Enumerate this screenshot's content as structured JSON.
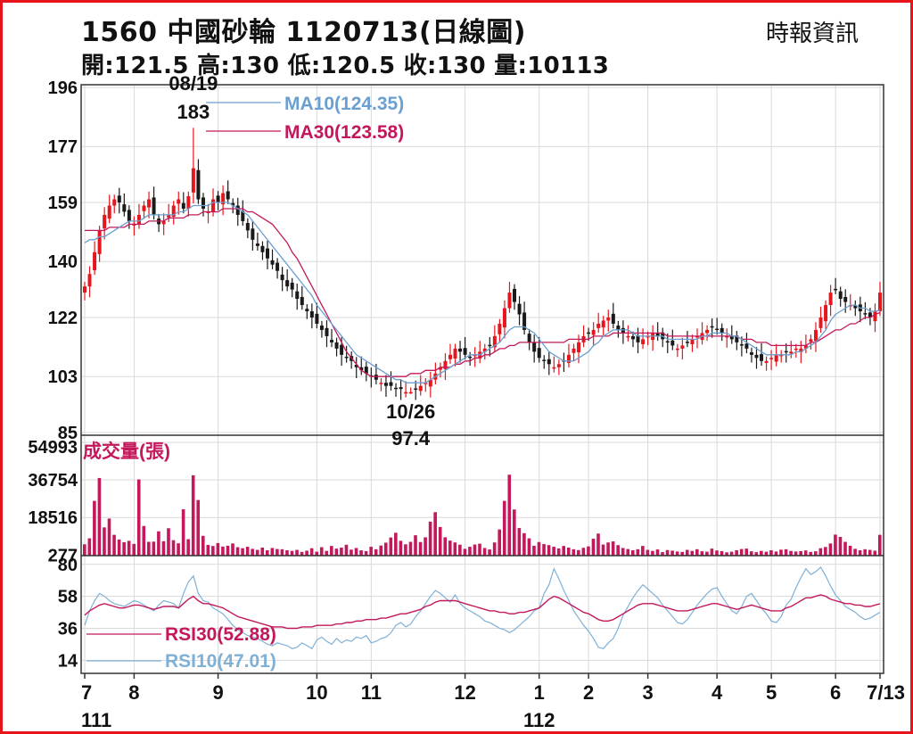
{
  "header": {
    "title": "1560  中國砂輪 1120713(日線圖)",
    "source": "時報資訊",
    "ohlc": "開:121.5 高:130 低:120.5 收:130 量:10113"
  },
  "colors": {
    "candle_up": "#e5161e",
    "candle_down": "#1a1a1a",
    "ma10": "#6a9fcf",
    "ma30": "#c3185b",
    "volume": "#c3185b",
    "rsi10": "#7fb0d6",
    "rsi30": "#c3185b",
    "grid": "#d9d9d9",
    "frame": "#e8141b"
  },
  "chart_data": [
    {
      "type": "candlestick",
      "panel": "price",
      "ylim": [
        85,
        196
      ],
      "yticks": [
        "196",
        "177",
        "159",
        "140",
        "122",
        "103",
        "85"
      ],
      "legend": [
        {
          "key": "ma10",
          "label": "MA10(124.35)"
        },
        {
          "key": "ma30",
          "label": "MA30(123.58)"
        }
      ],
      "annotations": [
        {
          "date": "08/19",
          "value": "183",
          "x_index": 22,
          "y": 183,
          "position": "above"
        },
        {
          "date": "10/26",
          "value": "97.4",
          "x_index": 66,
          "y": 97.4,
          "position": "below"
        }
      ],
      "close": [
        132,
        136,
        143,
        150,
        155,
        158,
        160,
        159,
        156,
        153,
        152,
        155,
        158,
        160,
        155,
        152,
        153,
        155,
        158,
        160,
        157,
        161,
        170,
        160,
        157,
        156,
        160,
        159,
        162,
        160,
        158,
        155,
        153,
        150,
        147,
        145,
        143,
        141,
        139,
        137,
        134,
        132,
        131,
        128,
        126,
        124,
        122,
        120,
        118,
        116,
        114,
        112,
        110,
        109,
        108,
        106,
        105,
        104,
        103,
        102,
        101,
        100,
        100,
        99,
        99,
        98,
        98,
        99,
        100,
        101,
        102,
        104,
        106,
        108,
        110,
        112,
        111,
        110,
        109,
        110,
        111,
        112,
        113,
        116,
        120,
        125,
        130,
        127,
        123,
        118,
        114,
        111,
        109,
        108,
        107,
        106,
        107,
        108,
        110,
        112,
        114,
        116,
        117,
        118,
        120,
        121,
        122,
        120,
        118,
        117,
        116,
        115,
        114,
        115,
        116,
        117,
        116,
        115,
        114,
        113,
        112,
        113,
        114,
        115,
        116,
        117,
        118,
        119,
        118,
        117,
        116,
        115,
        114,
        113,
        112,
        110,
        109,
        108,
        108,
        109,
        110,
        110,
        111,
        111,
        112,
        112,
        113,
        115,
        118,
        122,
        126,
        130,
        131,
        128,
        127,
        126,
        125,
        124,
        123,
        122,
        124,
        130
      ],
      "ma10": [
        146,
        147,
        147,
        148,
        148,
        149,
        150,
        151,
        152,
        153,
        153,
        153,
        154,
        155,
        155,
        155,
        155,
        155,
        155,
        156,
        156,
        157,
        158,
        158,
        158,
        158,
        159,
        159,
        159,
        159,
        158,
        157,
        156,
        155,
        153,
        151,
        149,
        147,
        145,
        143,
        141,
        139,
        137,
        135,
        133,
        131,
        129,
        126,
        124,
        122,
        120,
        118,
        116,
        114,
        112,
        110,
        109,
        108,
        107,
        106,
        105,
        104,
        103,
        102,
        102,
        101,
        101,
        101,
        101,
        101,
        102,
        103,
        104,
        105,
        106,
        107,
        108,
        109,
        110,
        110,
        110,
        111,
        112,
        113,
        114,
        116,
        118,
        119,
        119,
        119,
        118,
        117,
        115,
        113,
        111,
        110,
        109,
        108,
        108,
        108,
        109,
        110,
        111,
        113,
        114,
        116,
        117,
        118,
        118,
        118,
        118,
        117,
        116,
        116,
        116,
        116,
        116,
        116,
        115,
        115,
        115,
        115,
        115,
        115,
        115,
        116,
        116,
        117,
        117,
        117,
        117,
        116,
        116,
        115,
        114,
        113,
        112,
        111,
        110,
        110,
        110,
        110,
        110,
        110,
        111,
        111,
        112,
        113,
        114,
        116,
        118,
        121,
        123,
        124,
        125,
        126,
        126,
        125,
        125,
        124,
        124,
        124.35
      ],
      "ma30": [
        150,
        150,
        150,
        150,
        150,
        151,
        151,
        151,
        151,
        152,
        152,
        152,
        152,
        153,
        153,
        153,
        153,
        154,
        154,
        154,
        154,
        155,
        155,
        155,
        156,
        156,
        156,
        156,
        157,
        157,
        157,
        157,
        157,
        156,
        156,
        155,
        154,
        153,
        152,
        150,
        148,
        146,
        143,
        141,
        138,
        135,
        132,
        129,
        126,
        123,
        120,
        117,
        114,
        111,
        109,
        107,
        105,
        104,
        103,
        103,
        103,
        103,
        103,
        103,
        103,
        103,
        104,
        104,
        104,
        105,
        105,
        105,
        106,
        106,
        106,
        107,
        107,
        108,
        108,
        109,
        109,
        110,
        110,
        111,
        112,
        112,
        113,
        113,
        114,
        114,
        114,
        114,
        114,
        114,
        114,
        114,
        114,
        114,
        115,
        115,
        115,
        115,
        115,
        116,
        116,
        116,
        116,
        117,
        117,
        117,
        117,
        117,
        117,
        117,
        117,
        117,
        117,
        117,
        116,
        116,
        116,
        116,
        116,
        116,
        116,
        116,
        116,
        116,
        116,
        116,
        116,
        116,
        116,
        115,
        115,
        115,
        114,
        114,
        114,
        113,
        113,
        113,
        113,
        113,
        113,
        113,
        113,
        114,
        114,
        115,
        116,
        117,
        118,
        118,
        119,
        120,
        120,
        121,
        122,
        122,
        123,
        123.58
      ]
    },
    {
      "type": "bar",
      "panel": "volume",
      "label": "成交量(張)",
      "ylim": [
        0,
        54993
      ],
      "yticks": [
        "54993",
        "36754",
        "18516",
        "277"
      ],
      "values": [
        5500,
        8400,
        26600,
        37700,
        13700,
        18000,
        10100,
        7800,
        6500,
        7200,
        5700,
        37000,
        14400,
        6700,
        6800,
        11800,
        7000,
        13300,
        7500,
        6000,
        22500,
        8000,
        39000,
        27000,
        9600,
        5200,
        4700,
        6100,
        4400,
        4800,
        5900,
        4100,
        3600,
        4300,
        3300,
        2800,
        3900,
        2600,
        3700,
        3200,
        3100,
        2600,
        2300,
        2800,
        1800,
        2400,
        3600,
        1900,
        4100,
        2300,
        4700,
        3400,
        3900,
        5300,
        2900,
        3700,
        2600,
        2200,
        4300,
        3100,
        4900,
        6300,
        8800,
        11100,
        7200,
        5500,
        6700,
        9900,
        6600,
        8900,
        16500,
        21100,
        13900,
        8900,
        7300,
        6400,
        5300,
        3300,
        4300,
        5400,
        5800,
        3700,
        3000,
        6400,
        12700,
        26600,
        39300,
        22400,
        13400,
        10900,
        8400,
        4800,
        6600,
        5600,
        5100,
        4300,
        3500,
        4700,
        3900,
        3100,
        2700,
        3800,
        4500,
        8200,
        10700,
        5400,
        6400,
        6900,
        5100,
        3700,
        3200,
        2600,
        3100,
        4700,
        2800,
        2300,
        3000,
        1700,
        2700,
        2400,
        2000,
        1800,
        2800,
        2300,
        3100,
        2100,
        1900,
        3400,
        2500,
        2200,
        1600,
        1900,
        2600,
        3200,
        3400,
        2100,
        1700,
        2300,
        1900,
        2600,
        2000,
        2900,
        3100,
        2300,
        2000,
        2200,
        2500,
        1800,
        2100,
        3600,
        4200,
        5900,
        10200,
        9100,
        6700,
        4800,
        3300,
        2600,
        3100,
        2800,
        2400,
        10113
      ]
    },
    {
      "type": "line",
      "panel": "rsi",
      "ylim": [
        5,
        86
      ],
      "yticks": [
        "80",
        "58",
        "36",
        "14"
      ],
      "legend": [
        {
          "key": "rsi30",
          "label": "RSI30(52.88)"
        },
        {
          "key": "rsi10",
          "label": "RSI10(47.01)"
        }
      ],
      "series": [
        {
          "key": "rsi10",
          "values": [
            38,
            48,
            55,
            60,
            58,
            55,
            53,
            52,
            51,
            53,
            55,
            54,
            52,
            50,
            48,
            52,
            55,
            54,
            53,
            50,
            60,
            68,
            72,
            60,
            55,
            54,
            50,
            48,
            46,
            42,
            38,
            35,
            33,
            31,
            30,
            29,
            27,
            25,
            24,
            26,
            25,
            24,
            22,
            23,
            26,
            24,
            22,
            28,
            30,
            27,
            25,
            29,
            26,
            28,
            27,
            30,
            29,
            31,
            26,
            27,
            29,
            30,
            33,
            38,
            40,
            37,
            39,
            44,
            48,
            53,
            58,
            62,
            60,
            57,
            54,
            59,
            53,
            50,
            48,
            46,
            44,
            41,
            40,
            38,
            36,
            35,
            33,
            35,
            38,
            41,
            44,
            48,
            50,
            60,
            66,
            77,
            70,
            62,
            55,
            48,
            43,
            38,
            34,
            29,
            23,
            22,
            26,
            29,
            36,
            45,
            51,
            57,
            62,
            66,
            63,
            60,
            57,
            52,
            48,
            44,
            40,
            39,
            42,
            47,
            52,
            56,
            60,
            63,
            64,
            58,
            53,
            48,
            46,
            51,
            58,
            60,
            55,
            50,
            46,
            41,
            40,
            44,
            52,
            56,
            64,
            71,
            77,
            73,
            75,
            78,
            72,
            65,
            59,
            55,
            51,
            49,
            47,
            44,
            42,
            43,
            45,
            47.01
          ]
        },
        {
          "key": "rsi30",
          "values": [
            45,
            48,
            50,
            52,
            53,
            52,
            51,
            50,
            50,
            51,
            52,
            52,
            51,
            50,
            49,
            50,
            51,
            51,
            51,
            50,
            53,
            56,
            58,
            55,
            53,
            53,
            52,
            51,
            50,
            48,
            46,
            44,
            43,
            42,
            41,
            40,
            39,
            38,
            37,
            37,
            37,
            36,
            36,
            36,
            37,
            37,
            37,
            38,
            38,
            38,
            38,
            39,
            39,
            40,
            40,
            41,
            41,
            42,
            42,
            42,
            43,
            43,
            44,
            45,
            46,
            46,
            47,
            48,
            49,
            51,
            52,
            54,
            55,
            55,
            55,
            55,
            54,
            53,
            52,
            51,
            50,
            49,
            48,
            48,
            47,
            47,
            46,
            46,
            47,
            47,
            48,
            49,
            50,
            53,
            56,
            58,
            57,
            55,
            53,
            51,
            49,
            47,
            46,
            44,
            42,
            41,
            41,
            42,
            44,
            46,
            48,
            50,
            52,
            53,
            53,
            53,
            52,
            51,
            50,
            49,
            48,
            48,
            48,
            49,
            50,
            51,
            52,
            53,
            53,
            52,
            51,
            50,
            49,
            50,
            51,
            52,
            51,
            50,
            49,
            48,
            48,
            48,
            50,
            51,
            53,
            55,
            57,
            57,
            58,
            59,
            58,
            56,
            55,
            54,
            53,
            53,
            52,
            52,
            51,
            51,
            52,
            52.88
          ]
        }
      ]
    }
  ],
  "x_axis": {
    "month_ticks": [
      {
        "label": "7",
        "index": 0
      },
      {
        "label": "8",
        "index": 10
      },
      {
        "label": "9",
        "index": 27
      },
      {
        "label": "10",
        "index": 47
      },
      {
        "label": "11",
        "index": 58
      },
      {
        "label": "12",
        "index": 77
      },
      {
        "label": "1",
        "index": 92
      },
      {
        "label": "2",
        "index": 102
      },
      {
        "label": "3",
        "index": 114
      },
      {
        "label": "4",
        "index": 128
      },
      {
        "label": "5",
        "index": 139
      },
      {
        "label": "6",
        "index": 152
      },
      {
        "label": "7/13",
        "index": 161
      }
    ],
    "year_labels": [
      {
        "label": "111",
        "index": 0
      },
      {
        "label": "112",
        "index": 92
      }
    ]
  }
}
